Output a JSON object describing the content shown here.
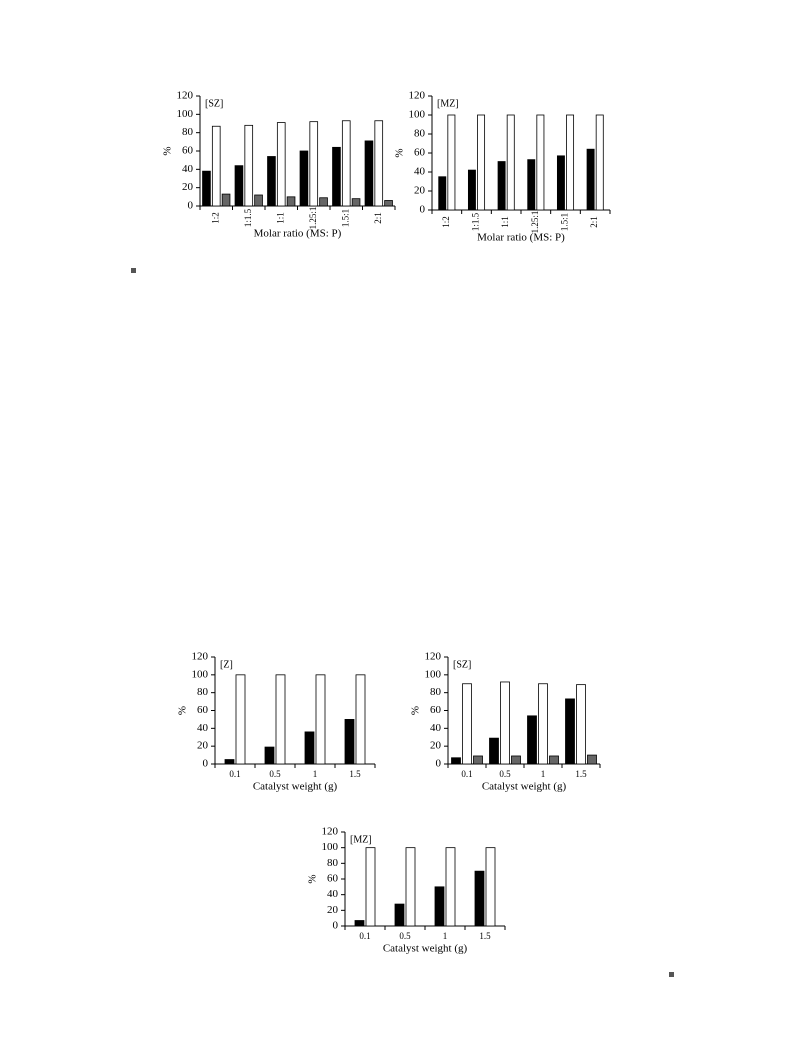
{
  "chart_data": [
    {
      "type": "bar",
      "title": "[SZ]",
      "ylabel": "%",
      "xlabel": "Molar ratio (MS: P)",
      "categories": [
        "1:2",
        "1:1.5",
        "1:1",
        "1.25:1",
        "1.5:1",
        "2:1"
      ],
      "series": [
        {
          "color": "#000000",
          "values": [
            38,
            44,
            54,
            60,
            64,
            71
          ]
        },
        {
          "color": "#ffffff",
          "values": [
            87,
            88,
            91,
            92,
            93,
            93
          ]
        },
        {
          "color": "#666666",
          "values": [
            13,
            12,
            10,
            9,
            8,
            6
          ]
        }
      ],
      "ylim": [
        0,
        120
      ],
      "yticks": [
        0,
        20,
        40,
        60,
        80,
        100,
        120
      ]
    },
    {
      "type": "bar",
      "title": "[MZ]",
      "ylabel": "%",
      "xlabel": "Molar ratio (MS: P)",
      "categories": [
        "1:2",
        "1:1.5",
        "1:1",
        "1.25:1",
        "1.5:1",
        "2:1"
      ],
      "series": [
        {
          "color": "#000000",
          "values": [
            35,
            42,
            51,
            53,
            57,
            64
          ]
        },
        {
          "color": "#ffffff",
          "values": [
            100,
            100,
            100,
            100,
            100,
            100
          ]
        }
      ],
      "ylim": [
        0,
        120
      ],
      "yticks": [
        0,
        20,
        40,
        60,
        80,
        100,
        120
      ]
    },
    {
      "type": "bar",
      "title": "[Z]",
      "ylabel": "%",
      "xlabel": "Catalyst weight (g)",
      "categories": [
        "0.1",
        "0.5",
        "1",
        "1.5"
      ],
      "series": [
        {
          "color": "#000000",
          "values": [
            5,
            19,
            36,
            50
          ]
        },
        {
          "color": "#ffffff",
          "values": [
            100,
            100,
            100,
            100
          ]
        }
      ],
      "ylim": [
        0,
        120
      ],
      "yticks": [
        0,
        20,
        40,
        60,
        80,
        100,
        120
      ]
    },
    {
      "type": "bar",
      "title": "[SZ]",
      "ylabel": "%",
      "xlabel": "Catalyst weight (g)",
      "categories": [
        "0.1",
        "0.5",
        "1",
        "1.5"
      ],
      "series": [
        {
          "color": "#000000",
          "values": [
            7,
            29,
            54,
            73
          ]
        },
        {
          "color": "#ffffff",
          "values": [
            90,
            92,
            90,
            89
          ]
        },
        {
          "color": "#666666",
          "values": [
            9,
            9,
            9,
            10
          ]
        }
      ],
      "ylim": [
        0,
        120
      ],
      "yticks": [
        0,
        20,
        40,
        60,
        80,
        100,
        120
      ]
    },
    {
      "type": "bar",
      "title": "[MZ]",
      "ylabel": "%",
      "xlabel": "Catalyst weight (g)",
      "categories": [
        "0.1",
        "0.5",
        "1",
        "1.5"
      ],
      "series": [
        {
          "color": "#000000",
          "values": [
            7,
            28,
            50,
            70
          ]
        },
        {
          "color": "#ffffff",
          "values": [
            100,
            100,
            100,
            100
          ]
        }
      ],
      "ylim": [
        0,
        120
      ],
      "yticks": [
        0,
        20,
        40,
        60,
        80,
        100,
        120
      ]
    }
  ]
}
